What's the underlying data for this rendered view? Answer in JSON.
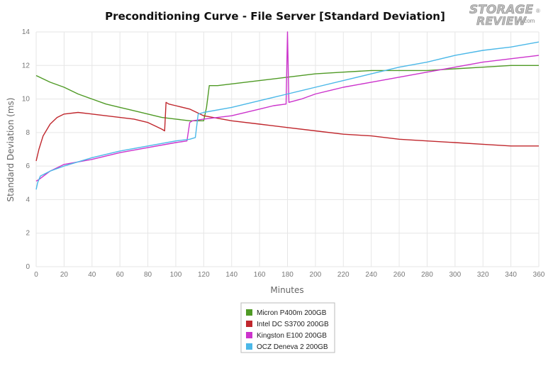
{
  "logo": {
    "line1": "STORAGE",
    "line2": "REVIEW",
    "suffix": ".com",
    "mark": "®"
  },
  "chart_data": {
    "type": "line",
    "title": "Preconditioning Curve - File Server [Standard Deviation]",
    "xlabel": "Minutes",
    "ylabel": "Standard Deviation (ms)",
    "xlim": [
      0,
      360
    ],
    "ylim": [
      0,
      14
    ],
    "x_ticks": [
      0,
      20,
      40,
      60,
      80,
      100,
      120,
      140,
      160,
      180,
      200,
      220,
      240,
      260,
      280,
      300,
      320,
      340,
      360
    ],
    "y_ticks": [
      0,
      2,
      4,
      6,
      8,
      10,
      12,
      14
    ],
    "grid": true,
    "legend_position": "bottom-center",
    "series": [
      {
        "name": "Micron P400m 200GB",
        "color": "#4f9a25",
        "x": [
          0,
          10,
          20,
          30,
          40,
          50,
          60,
          70,
          80,
          90,
          100,
          110,
          118,
          120,
          122,
          124,
          130,
          140,
          160,
          180,
          200,
          220,
          240,
          260,
          280,
          300,
          320,
          340,
          360
        ],
        "y": [
          11.4,
          11.0,
          10.7,
          10.3,
          10.0,
          9.7,
          9.5,
          9.3,
          9.1,
          8.9,
          8.8,
          8.7,
          8.7,
          8.7,
          9.5,
          10.8,
          10.8,
          10.9,
          11.1,
          11.3,
          11.5,
          11.6,
          11.7,
          11.7,
          11.7,
          11.8,
          11.9,
          12.0,
          12.0
        ]
      },
      {
        "name": "Intel DC S3700 200GB",
        "color": "#c0272d",
        "x": [
          0,
          2,
          5,
          10,
          15,
          20,
          30,
          40,
          50,
          60,
          70,
          80,
          85,
          90,
          92,
          93,
          95,
          100,
          110,
          120,
          140,
          160,
          180,
          200,
          220,
          240,
          260,
          280,
          300,
          320,
          340,
          360
        ],
        "y": [
          6.3,
          7.0,
          7.8,
          8.5,
          8.9,
          9.1,
          9.2,
          9.1,
          9.0,
          8.9,
          8.8,
          8.6,
          8.4,
          8.2,
          8.1,
          9.8,
          9.7,
          9.6,
          9.4,
          9.0,
          8.7,
          8.5,
          8.3,
          8.1,
          7.9,
          7.8,
          7.6,
          7.5,
          7.4,
          7.3,
          7.2,
          7.2
        ]
      },
      {
        "name": "Kingston E100 200GB",
        "color": "#cc33cc",
        "x": [
          0,
          2,
          10,
          20,
          40,
          60,
          80,
          100,
          108,
          110,
          112,
          120,
          140,
          160,
          170,
          179,
          180,
          181,
          190,
          200,
          220,
          240,
          260,
          280,
          300,
          320,
          340,
          360
        ],
        "y": [
          5.1,
          5.2,
          5.7,
          6.1,
          6.4,
          6.8,
          7.1,
          7.4,
          7.5,
          8.6,
          8.7,
          8.8,
          9.0,
          9.4,
          9.6,
          9.7,
          14.0,
          9.8,
          10.0,
          10.3,
          10.7,
          11.0,
          11.3,
          11.6,
          11.9,
          12.2,
          12.4,
          12.6
        ]
      },
      {
        "name": "OCZ Deneva 2 200GB",
        "color": "#4bb8e8",
        "x": [
          0,
          1,
          3,
          10,
          20,
          40,
          60,
          80,
          100,
          110,
          114,
          116,
          120,
          140,
          160,
          180,
          200,
          220,
          240,
          260,
          280,
          300,
          320,
          340,
          360
        ],
        "y": [
          4.6,
          5.0,
          5.4,
          5.7,
          6.0,
          6.5,
          6.9,
          7.2,
          7.5,
          7.6,
          7.7,
          9.1,
          9.2,
          9.5,
          9.9,
          10.3,
          10.7,
          11.1,
          11.5,
          11.9,
          12.2,
          12.6,
          12.9,
          13.1,
          13.4
        ]
      }
    ]
  }
}
